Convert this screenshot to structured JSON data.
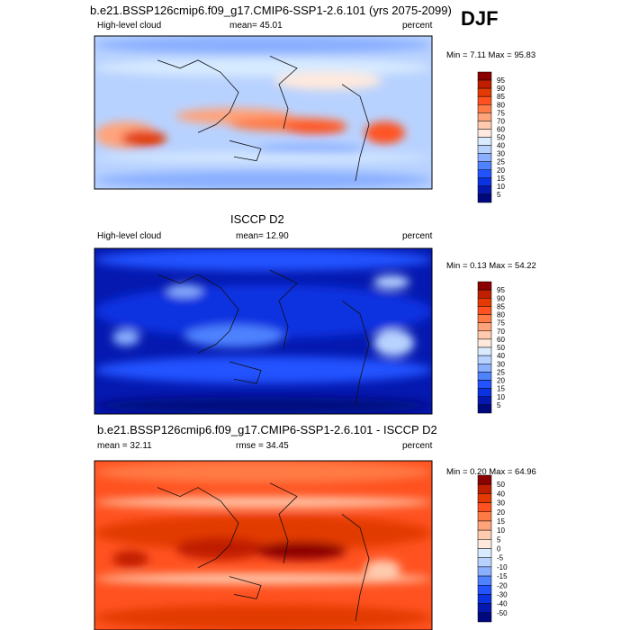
{
  "season": "DJF",
  "panels": [
    {
      "title": "b.e21.BSSP126cmip6.f09_g17.CMIP6-SSP1-2.6.101 (yrs 2075-2099)",
      "left": "High-level cloud",
      "center": "mean=  45.01",
      "right": "percent",
      "minmax": "Min =   7.11 Max =  95.83"
    },
    {
      "title": "ISCCP D2",
      "left": "High-level cloud",
      "center": "mean=  12.90",
      "right": "percent",
      "minmax": "Min =   0.13 Max =  54.22"
    },
    {
      "title": "b.e21.BSSP126cmip6.f09_g17.CMIP6-SSP1-2.6.101 - ISCCP D2",
      "left": "mean =  32.11",
      "center": "rmse =  34.45",
      "right": "percent",
      "minmax": "Min =   0.20 Max =  64.96"
    }
  ],
  "chart_data": {
    "type": "heatmap",
    "colors": [
      "#8b0000",
      "#c01e00",
      "#e23a00",
      "#ff5220",
      "#ff7a45",
      "#ffa37a",
      "#ffcaae",
      "#ffe9dc",
      "#d8ebff",
      "#b8d2ff",
      "#8aafff",
      "#4e82ff",
      "#2352ff",
      "#0a32e0",
      "#0519b0",
      "#00087e"
    ],
    "levels_abs": [
      "95",
      "90",
      "85",
      "80",
      "75",
      "70",
      "60",
      "50",
      "40",
      "30",
      "25",
      "20",
      "15",
      "10",
      "5"
    ],
    "levels_diff": [
      "50",
      "40",
      "30",
      "20",
      "15",
      "10",
      "5",
      "0",
      "-5",
      "-10",
      "-15",
      "-20",
      "-30",
      "-40",
      "-50"
    ]
  }
}
